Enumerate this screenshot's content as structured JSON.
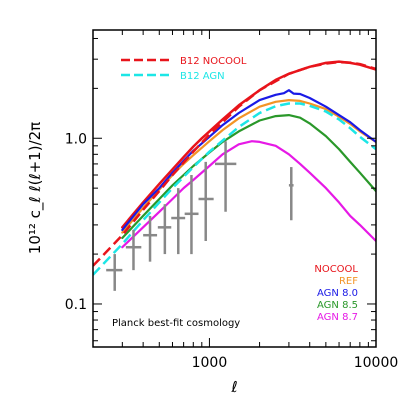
{
  "chart_data": {
    "type": "line",
    "xscale": "log",
    "yscale": "log",
    "xlim": [
      200,
      10000
    ],
    "ylim": [
      0.055,
      4.5
    ],
    "x_ticks": [
      {
        "value": 1000,
        "label": "1000"
      },
      {
        "value": 10000,
        "label": "10000"
      }
    ],
    "y_ticks": [
      {
        "value": 0.1,
        "label": "0.1"
      },
      {
        "value": 1.0,
        "label": "1.0"
      }
    ],
    "xlabel": "ℓ",
    "ylabel": "10¹² c_ℓ ℓ(ℓ+1)/2π",
    "grid": false,
    "legend_top": {
      "placement": "top-left",
      "entries": [
        {
          "name": "B12 NOCOOL",
          "color": "#e8141b",
          "style": "dashed"
        },
        {
          "name": "B12 AGN",
          "color": "#1ce6e6",
          "style": "dashed"
        }
      ]
    },
    "legend_bottom": {
      "placement": "bottom-right",
      "entries": [
        {
          "name": "NOCOOL",
          "color": "#e8141b"
        },
        {
          "name": "REF",
          "color": "#f39426"
        },
        {
          "name": "AGN 8.0",
          "color": "#1a1ae6"
        },
        {
          "name": "AGN 8.5",
          "color": "#2a982a"
        },
        {
          "name": "AGN 8.7",
          "color": "#e619e6"
        }
      ]
    },
    "annotation": "Planck best-fit cosmology",
    "series": [
      {
        "name": "NOCOOL",
        "color": "#e8141b",
        "style": "solid",
        "width": 2.5,
        "x": [
          300,
          350,
          400,
          500,
          600,
          700,
          800,
          900,
          1000,
          1200,
          1500,
          2000,
          2500,
          3000,
          4000,
          5000,
          6000,
          7000,
          8000,
          10000
        ],
        "y": [
          0.29,
          0.35,
          0.41,
          0.53,
          0.65,
          0.77,
          0.89,
          1.0,
          1.1,
          1.3,
          1.58,
          1.95,
          2.25,
          2.45,
          2.7,
          2.85,
          2.9,
          2.85,
          2.78,
          2.6
        ]
      },
      {
        "name": "REF",
        "color": "#f39426",
        "style": "solid",
        "width": 2.2,
        "x": [
          300,
          400,
          500,
          600,
          700,
          800,
          1000,
          1200,
          1500,
          2000,
          2500,
          3000,
          3500,
          4000,
          5000,
          6000,
          7000,
          8000,
          10000
        ],
        "y": [
          0.27,
          0.38,
          0.49,
          0.6,
          0.7,
          0.79,
          0.96,
          1.12,
          1.32,
          1.55,
          1.66,
          1.7,
          1.68,
          1.62,
          1.5,
          1.35,
          1.22,
          1.1,
          0.95
        ]
      },
      {
        "name": "AGN 8.0",
        "color": "#1a1ae6",
        "style": "solid",
        "width": 2.2,
        "x": [
          300,
          400,
          500,
          600,
          700,
          800,
          1000,
          1200,
          1500,
          2000,
          2500,
          2800,
          3000,
          3200,
          3500,
          4000,
          5000,
          6000,
          7000,
          8000,
          10000
        ],
        "y": [
          0.28,
          0.4,
          0.5,
          0.62,
          0.73,
          0.84,
          1.02,
          1.2,
          1.42,
          1.7,
          1.83,
          1.87,
          1.95,
          1.86,
          1.85,
          1.75,
          1.55,
          1.38,
          1.25,
          1.12,
          0.95
        ]
      },
      {
        "name": "AGN 8.5",
        "color": "#2a982a",
        "style": "solid",
        "width": 2.2,
        "x": [
          300,
          400,
          500,
          600,
          700,
          800,
          1000,
          1200,
          1500,
          2000,
          2500,
          3000,
          3500,
          4000,
          5000,
          6000,
          7000,
          8000,
          10000
        ],
        "y": [
          0.25,
          0.34,
          0.43,
          0.52,
          0.6,
          0.68,
          0.82,
          0.95,
          1.1,
          1.28,
          1.36,
          1.38,
          1.33,
          1.23,
          1.03,
          0.86,
          0.72,
          0.62,
          0.48
        ]
      },
      {
        "name": "AGN 8.7",
        "color": "#e619e6",
        "style": "solid",
        "width": 2.2,
        "x": [
          300,
          400,
          500,
          600,
          700,
          800,
          1000,
          1200,
          1500,
          1800,
          2000,
          2500,
          3000,
          3500,
          4000,
          5000,
          6000,
          7000,
          8000,
          10000
        ],
        "y": [
          0.22,
          0.29,
          0.36,
          0.43,
          0.5,
          0.56,
          0.68,
          0.8,
          0.92,
          0.96,
          0.95,
          0.9,
          0.8,
          0.7,
          0.62,
          0.5,
          0.41,
          0.34,
          0.3,
          0.24
        ]
      },
      {
        "name": "B12 NOCOOL",
        "color": "#e8141b",
        "style": "dashed",
        "width": 2.5,
        "x": [
          200,
          300,
          400,
          500,
          600,
          800,
          1000,
          1500,
          2000,
          3000,
          4000,
          5000,
          6000,
          7000,
          8000,
          10000
        ],
        "y": [
          0.17,
          0.26,
          0.37,
          0.48,
          0.6,
          0.83,
          1.05,
          1.55,
          1.95,
          2.45,
          2.7,
          2.82,
          2.88,
          2.86,
          2.8,
          2.62
        ]
      },
      {
        "name": "B12 AGN",
        "color": "#1ce6e6",
        "style": "dashed",
        "width": 2.5,
        "x": [
          200,
          300,
          400,
          500,
          600,
          800,
          1000,
          1500,
          2000,
          2500,
          3000,
          3500,
          4000,
          5000,
          6000,
          7000,
          8000,
          10000
        ],
        "y": [
          0.15,
          0.23,
          0.32,
          0.41,
          0.5,
          0.67,
          0.83,
          1.17,
          1.42,
          1.56,
          1.62,
          1.62,
          1.57,
          1.45,
          1.3,
          1.15,
          1.02,
          0.86
        ]
      }
    ],
    "data_points": {
      "color": "#888888",
      "points": [
        {
          "x": 270,
          "y": 0.16,
          "xerr": [
            240,
            300
          ],
          "yerr": [
            0.12,
            0.2
          ]
        },
        {
          "x": 350,
          "y": 0.22,
          "xerr": [
            315,
            390
          ],
          "yerr": [
            0.16,
            0.28
          ]
        },
        {
          "x": 440,
          "y": 0.26,
          "xerr": [
            400,
            485
          ],
          "yerr": [
            0.18,
            0.34
          ]
        },
        {
          "x": 540,
          "y": 0.29,
          "xerr": [
            490,
            590
          ],
          "yerr": [
            0.2,
            0.4
          ]
        },
        {
          "x": 650,
          "y": 0.33,
          "xerr": [
            590,
            715
          ],
          "yerr": [
            0.2,
            0.5
          ]
        },
        {
          "x": 780,
          "y": 0.35,
          "xerr": [
            710,
            860
          ],
          "yerr": [
            0.2,
            0.6
          ]
        },
        {
          "x": 950,
          "y": 0.43,
          "xerr": [
            860,
            1060
          ],
          "yerr": [
            0.24,
            0.72
          ]
        },
        {
          "x": 1250,
          "y": 0.7,
          "xerr": [
            1080,
            1450
          ],
          "yerr": [
            0.36,
            0.96
          ]
        },
        {
          "x": 3100,
          "y": 0.52,
          "xerr": [
            3000,
            3200
          ],
          "yerr": [
            0.32,
            0.67
          ]
        }
      ]
    }
  }
}
